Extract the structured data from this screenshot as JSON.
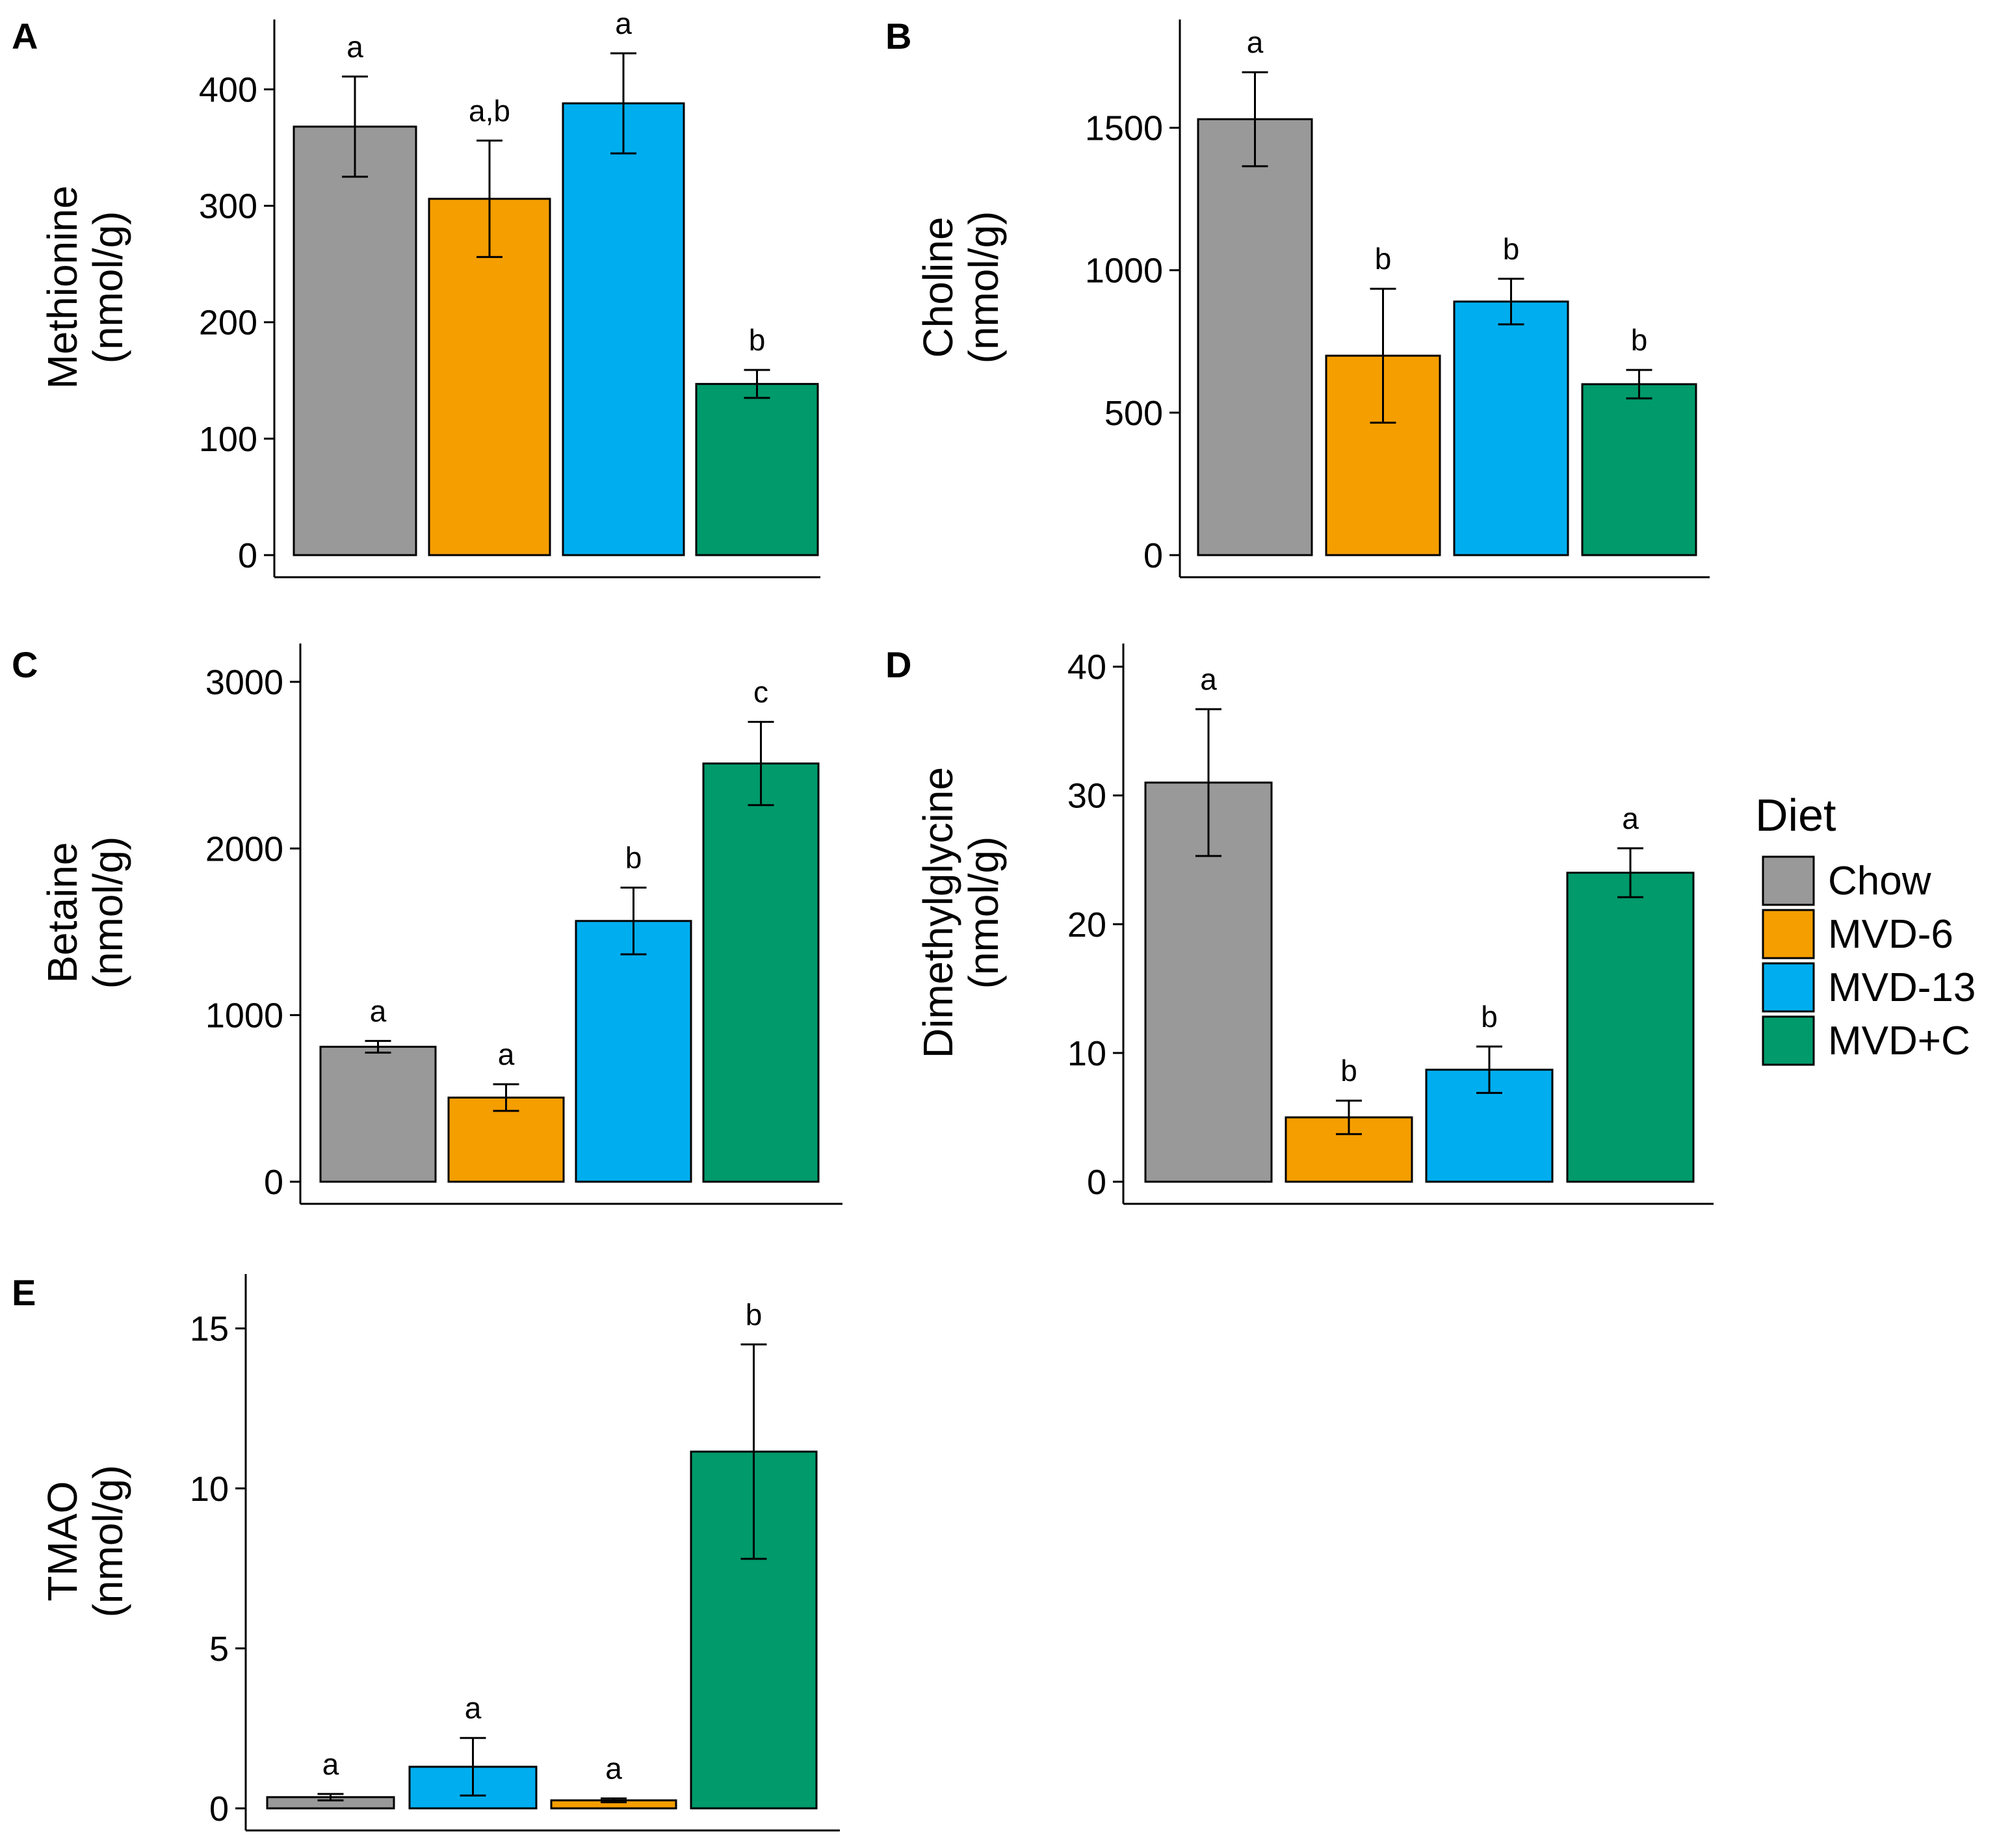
{
  "legend": {
    "title": "Diet",
    "items": [
      {
        "label": "Chow",
        "color": "#999999"
      },
      {
        "label": "MVD-6",
        "color": "#F59E00"
      },
      {
        "label": "MVD-13",
        "color": "#00AEEF"
      },
      {
        "label": "MVD+C",
        "color": "#009A6B"
      }
    ]
  },
  "chart_data": [
    {
      "panel": "A",
      "type": "bar",
      "ylabel": [
        "Methionine",
        "(nmol/g)"
      ],
      "ylim": [
        0,
        460
      ],
      "yticks": [
        0,
        100,
        200,
        300,
        400
      ],
      "categories": [
        "Chow",
        "MVD-6",
        "MVD-13",
        "MVD+C"
      ],
      "colors": [
        "#999999",
        "#F59E00",
        "#00AEEF",
        "#009A6B"
      ],
      "values": [
        368,
        306,
        388,
        147
      ],
      "errors": [
        43,
        50,
        43,
        12
      ],
      "significance": [
        "a",
        "a,b",
        "a",
        "b"
      ]
    },
    {
      "panel": "B",
      "type": "bar",
      "ylabel": [
        "Choline",
        "(nmol/g)"
      ],
      "ylim": [
        0,
        1880
      ],
      "yticks": [
        0,
        500,
        1000,
        1500
      ],
      "categories": [
        "Chow",
        "MVD-6",
        "MVD-13",
        "MVD+C"
      ],
      "colors": [
        "#999999",
        "#F59E00",
        "#00AEEF",
        "#009A6B"
      ],
      "values": [
        1530,
        700,
        890,
        600
      ],
      "errors": [
        165,
        235,
        80,
        50
      ],
      "significance": [
        "a",
        "b",
        "b",
        "b"
      ]
    },
    {
      "panel": "C",
      "type": "bar",
      "ylabel": [
        "Betaine",
        "(nmol/g)"
      ],
      "ylim": [
        0,
        3230
      ],
      "yticks": [
        0,
        1000,
        2000,
        3000
      ],
      "categories": [
        "Chow",
        "MVD-6",
        "MVD-13",
        "MVD+C"
      ],
      "colors": [
        "#999999",
        "#F59E00",
        "#00AEEF",
        "#009A6B"
      ],
      "values": [
        810,
        505,
        1565,
        2510
      ],
      "errors": [
        35,
        80,
        200,
        250
      ],
      "significance": [
        "a",
        "a",
        "b",
        "c"
      ]
    },
    {
      "panel": "D",
      "type": "bar",
      "ylabel": [
        "Dimethylglycine",
        "(nmol/g)"
      ],
      "ylim": [
        0,
        41.8
      ],
      "yticks": [
        0,
        10,
        20,
        30,
        40
      ],
      "categories": [
        "Chow",
        "MVD-6",
        "MVD-13",
        "MVD+C"
      ],
      "colors": [
        "#999999",
        "#F59E00",
        "#00AEEF",
        "#009A6B"
      ],
      "values": [
        31,
        5,
        8.7,
        24
      ],
      "errors": [
        5.7,
        1.3,
        1.8,
        1.9
      ],
      "significance": [
        "a",
        "b",
        "b",
        "a"
      ]
    },
    {
      "panel": "E",
      "type": "bar",
      "ylabel": [
        "TMAO",
        "(nmol/g)"
      ],
      "ylim": [
        0,
        16.7
      ],
      "yticks": [
        0,
        5,
        10,
        15
      ],
      "categories": [
        "Chow",
        "MVD-13",
        "MVD-6",
        "MVD+C"
      ],
      "colors": [
        "#999999",
        "#00AEEF",
        "#F59E00",
        "#009A6B"
      ],
      "values": [
        0.35,
        1.3,
        0.25,
        11.15
      ],
      "errors": [
        0.1,
        0.9,
        0.06,
        3.35
      ],
      "significance": [
        "a",
        "a",
        "a",
        "b"
      ]
    }
  ]
}
